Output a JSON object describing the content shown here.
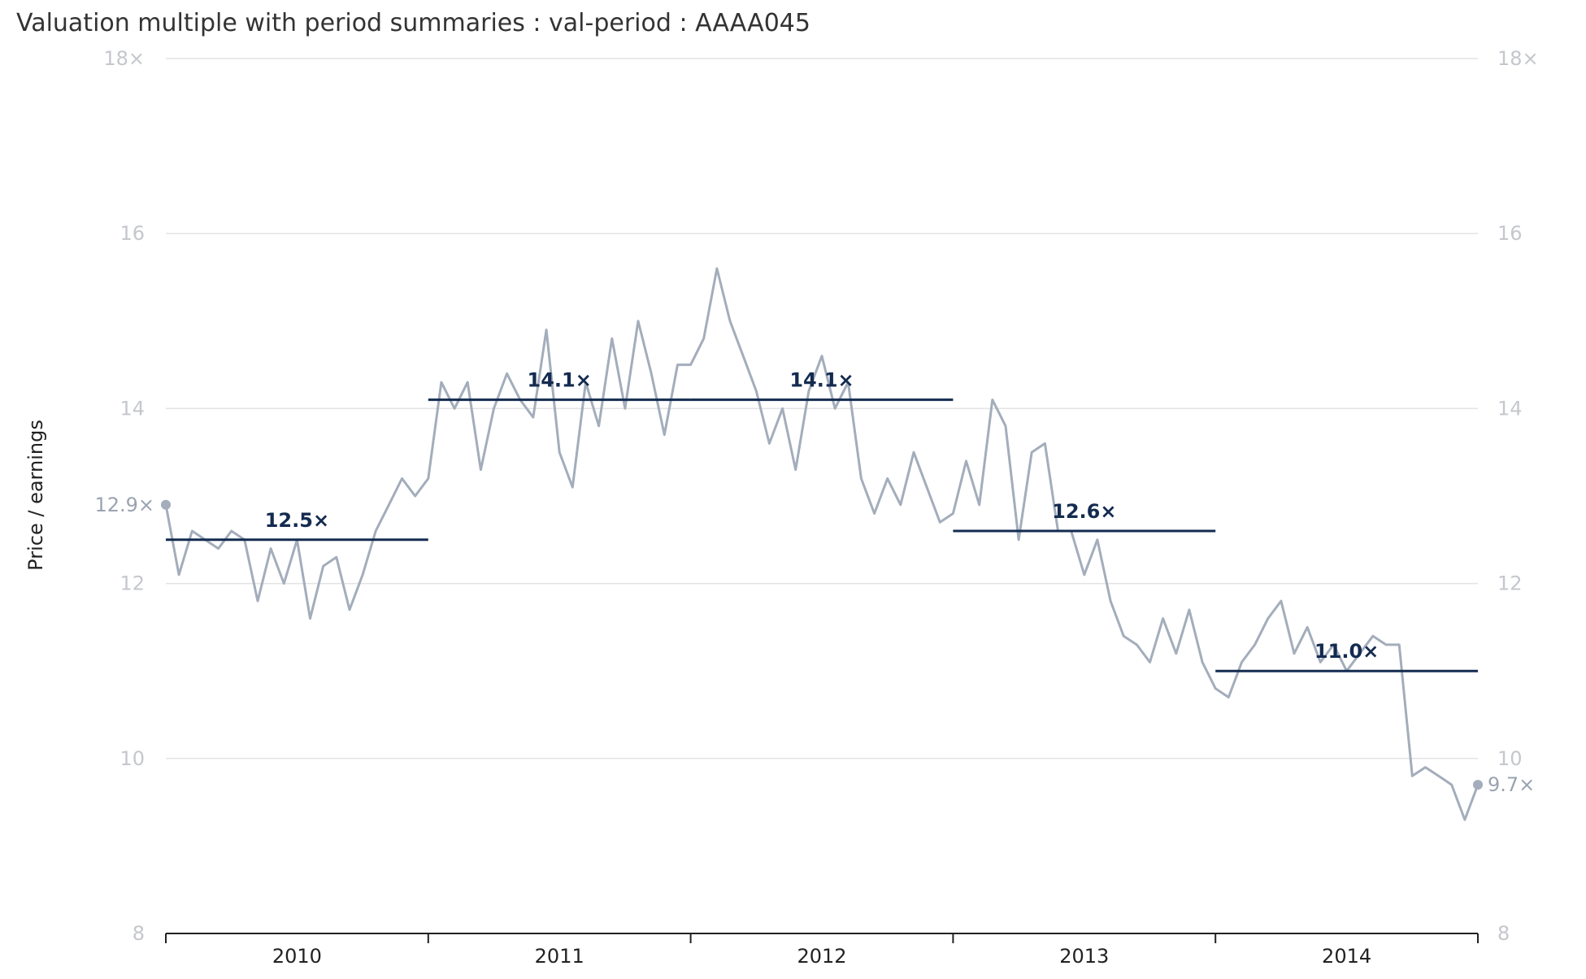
{
  "chart_data": {
    "type": "line",
    "title": "Valuation multiple with period summaries : val-period : AAAA045",
    "ylabel": "Price / earnings",
    "ylim": [
      8,
      18
    ],
    "yticks": [
      "8",
      "10",
      "12",
      "14",
      "16",
      "18×"
    ],
    "x_categories": [
      "2010",
      "2011",
      "2012",
      "2013",
      "2014"
    ],
    "grid": true,
    "legend": "none",
    "colors": {
      "series": "#a3adbb",
      "summary": "#142b50",
      "grid": "#e3e3e3",
      "axis": "#222222"
    },
    "series": [
      {
        "x": [
          2010.0,
          2010.05,
          2010.1,
          2010.15,
          2010.2,
          2010.25,
          2010.3,
          2010.35,
          2010.4,
          2010.45,
          2010.5,
          2010.55,
          2010.6,
          2010.65,
          2010.7,
          2010.75,
          2010.8,
          2010.85,
          2010.9,
          2010.95,
          2011.0,
          2011.05,
          2011.1,
          2011.15,
          2011.2,
          2011.25,
          2011.3,
          2011.35,
          2011.4,
          2011.45,
          2011.5,
          2011.55,
          2011.6,
          2011.65,
          2011.7,
          2011.75,
          2011.8,
          2011.85,
          2011.9,
          2011.95,
          2012.0,
          2012.05,
          2012.1,
          2012.15,
          2012.2,
          2012.25,
          2012.3,
          2012.35,
          2012.4,
          2012.45,
          2012.5,
          2012.55,
          2012.6,
          2012.65,
          2012.7,
          2012.75,
          2012.8,
          2012.85,
          2012.9,
          2012.95,
          2013.0,
          2013.05,
          2013.1,
          2013.15,
          2013.2,
          2013.25,
          2013.3,
          2013.35,
          2013.4,
          2013.45,
          2013.5,
          2013.55,
          2013.6,
          2013.65,
          2013.7,
          2013.75,
          2013.8,
          2013.85,
          2013.9,
          2013.95,
          2014.0,
          2014.05,
          2014.1,
          2014.15,
          2014.2,
          2014.25,
          2014.3,
          2014.35,
          2014.4,
          2014.45,
          2014.5,
          2014.55,
          2014.6,
          2014.65,
          2014.7,
          2014.75,
          2014.8,
          2014.85,
          2014.9,
          2014.95,
          2015.0
        ],
        "values": [
          12.9,
          12.1,
          12.6,
          12.5,
          12.4,
          12.6,
          12.5,
          11.8,
          12.4,
          12.0,
          12.5,
          11.6,
          12.2,
          12.3,
          11.7,
          12.1,
          12.6,
          12.9,
          13.2,
          13.0,
          13.2,
          14.3,
          14.0,
          14.3,
          13.3,
          14.0,
          14.4,
          14.1,
          13.9,
          14.9,
          13.5,
          13.1,
          14.3,
          13.8,
          14.8,
          14.0,
          15.0,
          14.4,
          13.7,
          14.5,
          14.5,
          14.8,
          15.6,
          15.0,
          14.6,
          14.2,
          13.6,
          14.0,
          13.3,
          14.2,
          14.6,
          14.0,
          14.3,
          13.2,
          12.8,
          13.2,
          12.9,
          13.5,
          13.1,
          12.7,
          12.8,
          13.4,
          12.9,
          14.1,
          13.8,
          12.5,
          13.5,
          13.6,
          12.6,
          12.6,
          12.1,
          12.5,
          11.8,
          11.4,
          11.3,
          11.1,
          11.6,
          11.2,
          11.7,
          11.1,
          10.8,
          10.7,
          11.1,
          11.3,
          11.6,
          11.8,
          11.2,
          11.5,
          11.1,
          11.3,
          11.0,
          11.2,
          11.4,
          11.3,
          11.3,
          9.8,
          9.9,
          9.8,
          9.7,
          9.3,
          9.7
        ]
      }
    ],
    "period_summaries": [
      {
        "label": "12.5×",
        "value": 12.5,
        "from": 2010.0,
        "to": 2011.0
      },
      {
        "label": "14.1×",
        "value": 14.1,
        "from": 2011.0,
        "to": 2012.0
      },
      {
        "label": "14.1×",
        "value": 14.1,
        "from": 2012.0,
        "to": 2013.0
      },
      {
        "label": "12.6×",
        "value": 12.6,
        "from": 2013.0,
        "to": 2014.0
      },
      {
        "label": "11.0×",
        "value": 11.0,
        "from": 2014.0,
        "to": 2015.0
      }
    ],
    "start_label": "12.9×",
    "end_label": "9.7×"
  }
}
